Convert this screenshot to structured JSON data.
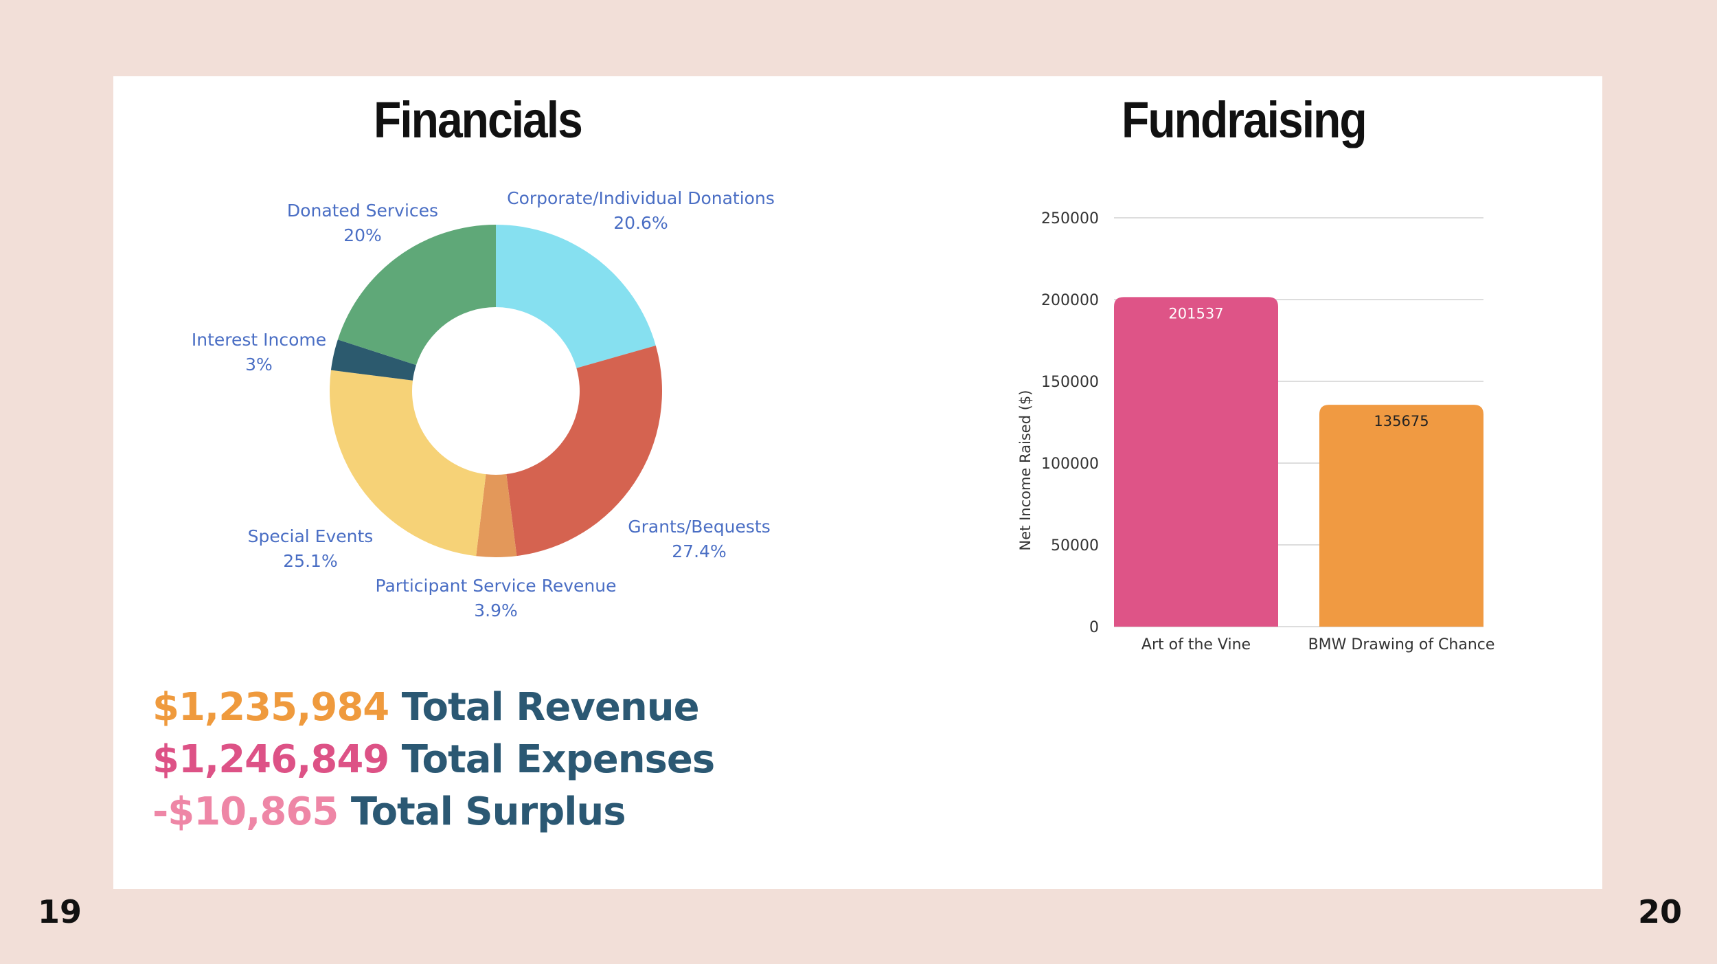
{
  "page_numbers": {
    "left": "19",
    "right": "20"
  },
  "financials": {
    "title": "Financials",
    "totals": [
      {
        "amount": "$1,235,984",
        "label": "Total Revenue",
        "amount_color": "#ef9a3d"
      },
      {
        "amount": "$1,246,849",
        "label": "Total Expenses",
        "amount_color": "#dd5286"
      },
      {
        "amount": "-$10,865",
        "label": "Total Surplus",
        "amount_color": "#ee86a6"
      }
    ]
  },
  "fundraising": {
    "title": "Fundraising"
  },
  "chart_data": [
    {
      "type": "pie",
      "donut": true,
      "slices": [
        {
          "label": "Corporate/Individual Donations",
          "pct_label": "20.6%",
          "value": 20.6,
          "color": "#86e0f0"
        },
        {
          "label": "Grants/Bequests",
          "pct_label": "27.4%",
          "value": 27.4,
          "color": "#d56350"
        },
        {
          "label": "Participant Service Revenue",
          "pct_label": "3.9%",
          "value": 3.9,
          "color": "#e3985a"
        },
        {
          "label": "Special Events",
          "pct_label": "25.1%",
          "value": 25.1,
          "color": "#f6d277"
        },
        {
          "label": "Interest Income",
          "pct_label": "3%",
          "value": 3,
          "color": "#2c5a6e"
        },
        {
          "label": "Donated Services",
          "pct_label": "20%",
          "value": 20,
          "color": "#5fa878"
        }
      ]
    },
    {
      "type": "bar",
      "categories": [
        "Art of the Vine",
        "BMW Drawing of Chance"
      ],
      "values": [
        201537,
        135675
      ],
      "data_labels": [
        "201537",
        "135675"
      ],
      "colors": [
        "#de5487",
        "#f09a42"
      ],
      "ylabel": "Net Income Raised ($)",
      "ylim": [
        0,
        250000
      ],
      "yticks": [
        "0",
        "50000",
        "100000",
        "150000",
        "200000",
        "250000"
      ],
      "grid": true
    }
  ]
}
